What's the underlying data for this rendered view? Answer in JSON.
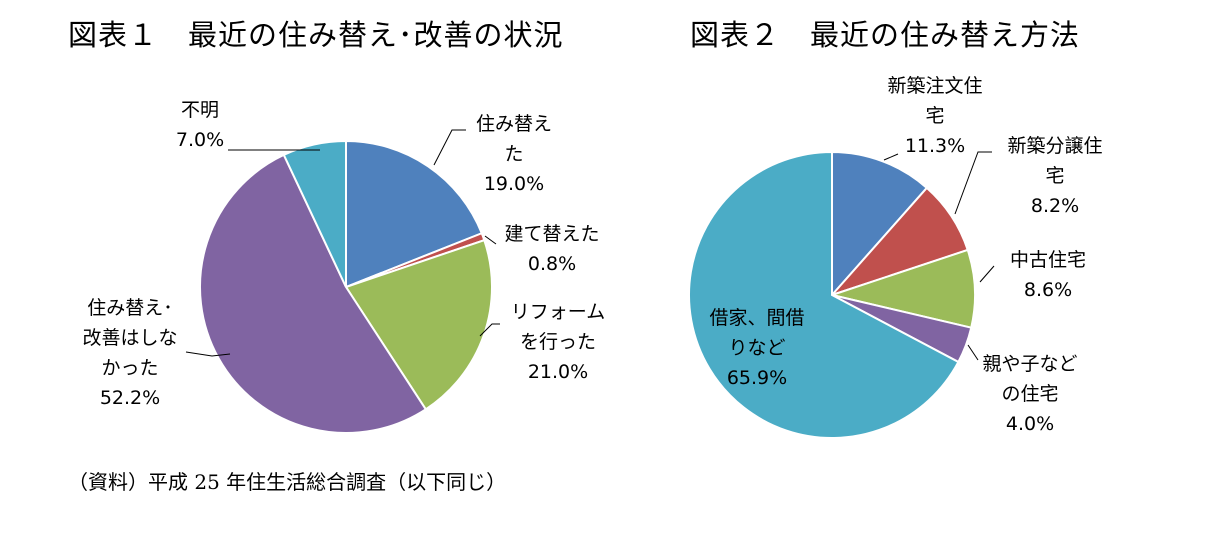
{
  "titles": {
    "chart1": "図表１　最近の住み替え･改善の状況",
    "chart2": "図表２　最近の住み替え方法"
  },
  "source": "（資料）平成 25 年住生活総合調査（以下同じ）",
  "chart_data": [
    {
      "type": "pie",
      "title": "図表１　最近の住み替え･改善の状況",
      "start_angle": "12 o'clock, clockwise",
      "slices": [
        {
          "label": "住み替えた",
          "value": 19.0,
          "value_label": "19.0%",
          "color": "#4F81BD",
          "label_lines": [
            "住み替え",
            "た"
          ]
        },
        {
          "label": "建て替えた",
          "value": 0.8,
          "value_label": "0.8%",
          "color": "#C0504D",
          "label_lines": [
            "建て替えた"
          ]
        },
        {
          "label": "リフォームを行った",
          "value": 21.0,
          "value_label": "21.0%",
          "color": "#9BBB59",
          "label_lines": [
            "リフォーム",
            "を行った"
          ]
        },
        {
          "label": "住み替え･改善はしなかった",
          "value": 52.2,
          "value_label": "52.2%",
          "color": "#8064A2",
          "label_lines": [
            "住み替え･",
            "改善はしな",
            "かった"
          ]
        },
        {
          "label": "不明",
          "value": 7.0,
          "value_label": "7.0%",
          "color": "#4BACC6",
          "label_lines": [
            "不明"
          ]
        }
      ]
    },
    {
      "type": "pie",
      "title": "図表２　最近の住み替え方法",
      "start_angle": "12 o'clock, clockwise",
      "slices": [
        {
          "label": "新築注文住宅",
          "value": 11.3,
          "value_label": "11.3%",
          "color": "#4F81BD",
          "label_lines": [
            "新築注文住",
            "宅"
          ]
        },
        {
          "label": "新築分譲住宅",
          "value": 8.2,
          "value_label": "8.2%",
          "color": "#C0504D",
          "label_lines": [
            "新築分譲住",
            "宅"
          ]
        },
        {
          "label": "中古住宅",
          "value": 8.6,
          "value_label": "8.6%",
          "color": "#9BBB59",
          "label_lines": [
            "中古住宅"
          ]
        },
        {
          "label": "親や子などの住宅",
          "value": 4.0,
          "value_label": "4.0%",
          "color": "#8064A2",
          "label_lines": [
            "親や子など",
            "の住宅"
          ]
        },
        {
          "label": "借家、間借りなど",
          "value": 65.9,
          "value_label": "65.9%",
          "color": "#4BACC6",
          "label_lines": [
            "借家、間借",
            "りなど"
          ]
        }
      ]
    }
  ]
}
